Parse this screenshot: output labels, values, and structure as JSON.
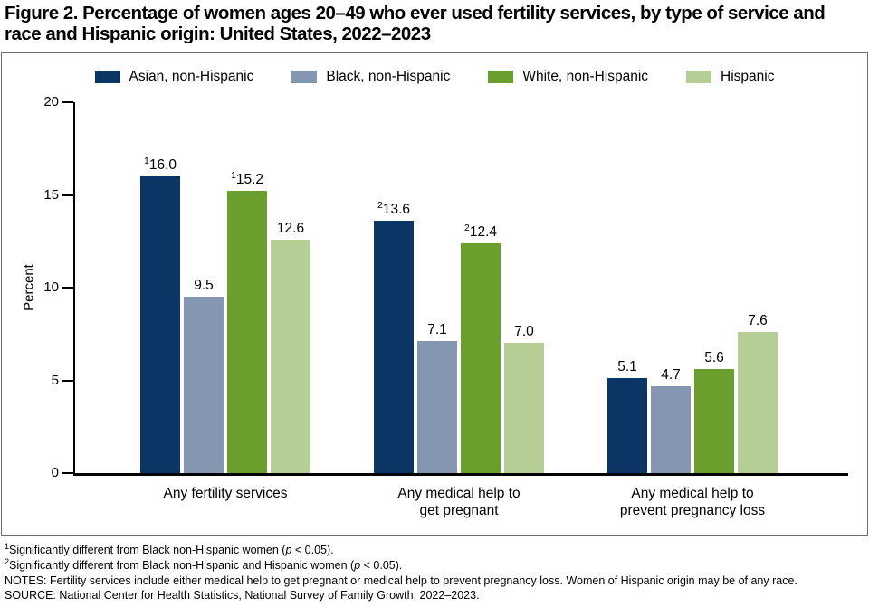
{
  "figure": {
    "title_lines": [
      "Figure 2. Percentage of women ages 20–49 who ever used fertility services, by type of service and",
      "race and Hispanic origin: United States, 2022–2023"
    ]
  },
  "chart_data": {
    "type": "bar",
    "title": "Percentage of women ages 20–49 who ever used fertility services, by type of service and race and Hispanic origin: United States, 2022–2023",
    "xlabel": "",
    "ylabel": "Percent",
    "ylim": [
      0,
      20
    ],
    "yticks": [
      "0",
      "5",
      "10",
      "15",
      "20"
    ],
    "grid": false,
    "legend_position": "top-center",
    "categories": [
      {
        "label_lines": [
          "Any fertility services",
          ""
        ]
      },
      {
        "label_lines": [
          "Any medical help to",
          "get pregnant"
        ]
      },
      {
        "label_lines": [
          "Any medical help to",
          "prevent pregnancy loss"
        ]
      }
    ],
    "series": [
      {
        "name": "Asian, non-Hispanic",
        "color": "#0a3564",
        "points": [
          {
            "value": 16.0,
            "label": "16.0",
            "sup": "1"
          },
          {
            "value": 13.6,
            "label": "13.6",
            "sup": "2"
          },
          {
            "value": 5.1,
            "label": "5.1",
            "sup": ""
          }
        ]
      },
      {
        "name": "Black, non-Hispanic",
        "color": "#8596b2",
        "points": [
          {
            "value": 9.5,
            "label": "9.5",
            "sup": ""
          },
          {
            "value": 7.1,
            "label": "7.1",
            "sup": ""
          },
          {
            "value": 4.7,
            "label": "4.7",
            "sup": ""
          }
        ]
      },
      {
        "name": "White, non-Hispanic",
        "color": "#6a9e2d",
        "points": [
          {
            "value": 15.2,
            "label": "15.2",
            "sup": "1"
          },
          {
            "value": 12.4,
            "label": "12.4",
            "sup": "2"
          },
          {
            "value": 5.6,
            "label": "5.6",
            "sup": ""
          }
        ]
      },
      {
        "name": "Hispanic",
        "color": "#b5ce96",
        "points": [
          {
            "value": 12.6,
            "label": "12.6",
            "sup": ""
          },
          {
            "value": 7.0,
            "label": "7.0",
            "sup": ""
          },
          {
            "value": 7.6,
            "label": "7.6",
            "sup": ""
          }
        ]
      }
    ]
  },
  "footnotes": [
    {
      "sup": "1",
      "before": "Significantly different from Black non-Hispanic women (",
      "italic": "p",
      "after": " < 0.05)."
    },
    {
      "sup": "2",
      "before": "Significantly different from Black non-Hispanic and Hispanic women (",
      "italic": "p",
      "after": " < 0.05)."
    },
    {
      "sup": "",
      "before": "NOTES: Fertility services include either medical help to get pregnant or medical help to prevent pregnancy loss. Women of Hispanic origin may be of any race.",
      "italic": "",
      "after": ""
    },
    {
      "sup": "",
      "before": "SOURCE: National Center for Health Statistics, National Survey of Family Growth, 2022–2023.",
      "italic": "",
      "after": ""
    }
  ]
}
